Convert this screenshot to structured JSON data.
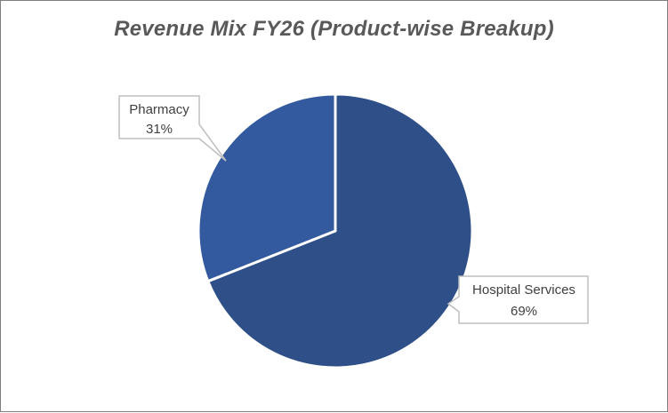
{
  "chart_data": {
    "type": "pie",
    "title": "Revenue Mix FY26 (Product-wise Breakup)",
    "slices": [
      {
        "label": "Hospital Services",
        "value": 69,
        "value_label": "69%",
        "color": "#2f4f88"
      },
      {
        "label": "Pharmacy",
        "value": 31,
        "value_label": "31%",
        "color": "#335a9e"
      }
    ],
    "start_angle_deg": 0,
    "direction": "clockwise",
    "data_labels": "callouts",
    "legend": "none"
  }
}
